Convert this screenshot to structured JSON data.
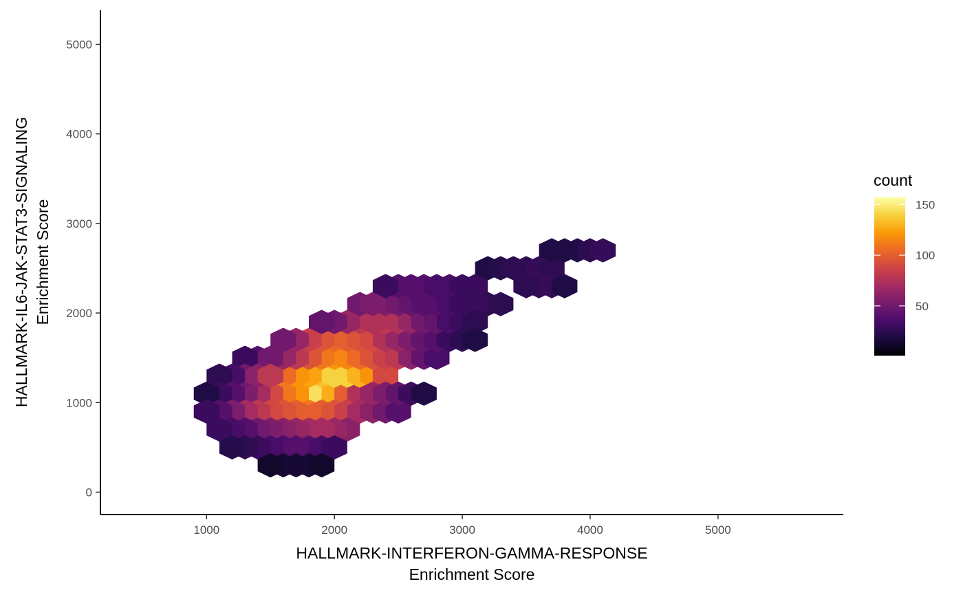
{
  "chart_data": {
    "type": "heatmap",
    "subtype": "hexbin",
    "title": "",
    "xlabel_lines": [
      "HALLMARK-INTERFERON-GAMMA-RESPONSE",
      "Enrichment Score"
    ],
    "ylabel_lines": [
      "HALLMARK-IL6-JAK-STAT3-SIGNALING",
      "Enrichment Score"
    ],
    "xlim": [
      170,
      5980
    ],
    "ylim": [
      -250,
      5380
    ],
    "x_ticks": [
      1000,
      2000,
      3000,
      4000,
      5000
    ],
    "y_ticks": [
      0,
      1000,
      2000,
      3000,
      4000,
      5000
    ],
    "x_tick_labels": [
      "1000",
      "2000",
      "3000",
      "4000",
      "5000"
    ],
    "y_tick_labels": [
      "0",
      "1000",
      "2000",
      "3000",
      "4000",
      "5000"
    ],
    "grid": false,
    "colormap": "inferno",
    "colormap_stops": [
      "#000004",
      "#1b0c41",
      "#4a0c6b",
      "#781c6d",
      "#a52c60",
      "#cf4446",
      "#ed6925",
      "#fb9b06",
      "#f7d13d",
      "#fcffa4"
    ],
    "legend": {
      "title": "count",
      "placement": "right",
      "range": [
        1,
        157
      ],
      "tick_values": [
        50,
        100,
        150
      ],
      "tick_labels": [
        "50",
        "100",
        "150"
      ]
    },
    "bin_width": 200,
    "bins": [
      {
        "x": 1800,
        "y": 1100,
        "count": 157
      },
      {
        "x": 1900,
        "y": 1100,
        "count": 145
      },
      {
        "x": 2000,
        "y": 1100,
        "count": 128
      },
      {
        "x": 1700,
        "y": 1100,
        "count": 120
      },
      {
        "x": 2100,
        "y": 1100,
        "count": 100
      },
      {
        "x": 2200,
        "y": 1100,
        "count": 75
      },
      {
        "x": 1900,
        "y": 1300,
        "count": 135
      },
      {
        "x": 2000,
        "y": 1300,
        "count": 140
      },
      {
        "x": 2100,
        "y": 1300,
        "count": 140
      },
      {
        "x": 1800,
        "y": 1300,
        "count": 125
      },
      {
        "x": 2200,
        "y": 1300,
        "count": 130
      },
      {
        "x": 1700,
        "y": 1300,
        "count": 120
      },
      {
        "x": 2300,
        "y": 1300,
        "count": 120
      },
      {
        "x": 1600,
        "y": 1300,
        "count": 105
      },
      {
        "x": 2400,
        "y": 1300,
        "count": 90
      },
      {
        "x": 2000,
        "y": 1500,
        "count": 120
      },
      {
        "x": 2100,
        "y": 1500,
        "count": 115
      },
      {
        "x": 1900,
        "y": 1500,
        "count": 110
      },
      {
        "x": 2200,
        "y": 1500,
        "count": 105
      },
      {
        "x": 1800,
        "y": 1500,
        "count": 95
      },
      {
        "x": 2300,
        "y": 1500,
        "count": 95
      },
      {
        "x": 2400,
        "y": 1500,
        "count": 85
      },
      {
        "x": 1700,
        "y": 1500,
        "count": 80
      },
      {
        "x": 2500,
        "y": 1500,
        "count": 80
      },
      {
        "x": 1600,
        "y": 1500,
        "count": 65
      },
      {
        "x": 2600,
        "y": 1500,
        "count": 60
      },
      {
        "x": 1600,
        "y": 1100,
        "count": 110
      },
      {
        "x": 1500,
        "y": 1100,
        "count": 90
      },
      {
        "x": 1400,
        "y": 1100,
        "count": 70
      },
      {
        "x": 1300,
        "y": 1100,
        "count": 55
      },
      {
        "x": 1800,
        "y": 900,
        "count": 110
      },
      {
        "x": 1900,
        "y": 900,
        "count": 100
      },
      {
        "x": 1700,
        "y": 900,
        "count": 100
      },
      {
        "x": 2000,
        "y": 900,
        "count": 95
      },
      {
        "x": 1600,
        "y": 900,
        "count": 95
      },
      {
        "x": 1500,
        "y": 900,
        "count": 90
      },
      {
        "x": 2100,
        "y": 900,
        "count": 85
      },
      {
        "x": 1400,
        "y": 900,
        "count": 80
      },
      {
        "x": 2200,
        "y": 900,
        "count": 70
      },
      {
        "x": 1300,
        "y": 900,
        "count": 70
      },
      {
        "x": 2300,
        "y": 900,
        "count": 60
      },
      {
        "x": 2000,
        "y": 1700,
        "count": 105
      },
      {
        "x": 2100,
        "y": 1700,
        "count": 100
      },
      {
        "x": 2200,
        "y": 1700,
        "count": 95
      },
      {
        "x": 1900,
        "y": 1700,
        "count": 95
      },
      {
        "x": 2300,
        "y": 1700,
        "count": 90
      },
      {
        "x": 1800,
        "y": 1700,
        "count": 85
      },
      {
        "x": 2400,
        "y": 1700,
        "count": 75
      },
      {
        "x": 1700,
        "y": 1700,
        "count": 65
      },
      {
        "x": 2500,
        "y": 1700,
        "count": 65
      },
      {
        "x": 2600,
        "y": 1700,
        "count": 55
      },
      {
        "x": 1600,
        "y": 1700,
        "count": 50
      },
      {
        "x": 2200,
        "y": 1900,
        "count": 80
      },
      {
        "x": 2400,
        "y": 1900,
        "count": 80
      },
      {
        "x": 2300,
        "y": 1900,
        "count": 75
      },
      {
        "x": 2500,
        "y": 1900,
        "count": 75
      },
      {
        "x": 2100,
        "y": 1900,
        "count": 65
      },
      {
        "x": 2600,
        "y": 1900,
        "count": 65
      },
      {
        "x": 2000,
        "y": 1900,
        "count": 50
      },
      {
        "x": 1900,
        "y": 1900,
        "count": 45
      },
      {
        "x": 1400,
        "y": 1500,
        "count": 40
      },
      {
        "x": 1500,
        "y": 1500,
        "count": 50
      },
      {
        "x": 1300,
        "y": 1500,
        "count": 30
      },
      {
        "x": 1300,
        "y": 1300,
        "count": 50
      },
      {
        "x": 1400,
        "y": 1300,
        "count": 60
      },
      {
        "x": 1500,
        "y": 1300,
        "count": 80
      },
      {
        "x": 1200,
        "y": 1300,
        "count": 35
      },
      {
        "x": 1100,
        "y": 1300,
        "count": 25
      },
      {
        "x": 1200,
        "y": 1100,
        "count": 40
      },
      {
        "x": 1100,
        "y": 1100,
        "count": 30
      },
      {
        "x": 1000,
        "y": 1100,
        "count": 20
      },
      {
        "x": 1200,
        "y": 900,
        "count": 55
      },
      {
        "x": 1100,
        "y": 900,
        "count": 40
      },
      {
        "x": 1000,
        "y": 900,
        "count": 30
      },
      {
        "x": 2400,
        "y": 900,
        "count": 50
      },
      {
        "x": 2500,
        "y": 900,
        "count": 40
      },
      {
        "x": 2300,
        "y": 1100,
        "count": 65
      },
      {
        "x": 2400,
        "y": 1100,
        "count": 55
      },
      {
        "x": 2500,
        "y": 1100,
        "count": 45
      },
      {
        "x": 2600,
        "y": 1100,
        "count": 30
      },
      {
        "x": 2700,
        "y": 1100,
        "count": 20
      },
      {
        "x": 2700,
        "y": 1500,
        "count": 45
      },
      {
        "x": 2800,
        "y": 1500,
        "count": 35
      },
      {
        "x": 2700,
        "y": 1700,
        "count": 45
      },
      {
        "x": 2800,
        "y": 1700,
        "count": 40
      },
      {
        "x": 2900,
        "y": 1700,
        "count": 30
      },
      {
        "x": 2700,
        "y": 1900,
        "count": 50
      },
      {
        "x": 2800,
        "y": 1900,
        "count": 45
      },
      {
        "x": 2900,
        "y": 1900,
        "count": 35
      },
      {
        "x": 2100,
        "y": 700,
        "count": 60
      },
      {
        "x": 2000,
        "y": 700,
        "count": 65
      },
      {
        "x": 1900,
        "y": 700,
        "count": 70
      },
      {
        "x": 1800,
        "y": 700,
        "count": 70
      },
      {
        "x": 1700,
        "y": 700,
        "count": 65
      },
      {
        "x": 1600,
        "y": 700,
        "count": 60
      },
      {
        "x": 1500,
        "y": 700,
        "count": 55
      },
      {
        "x": 1400,
        "y": 700,
        "count": 50
      },
      {
        "x": 1300,
        "y": 700,
        "count": 40
      },
      {
        "x": 1200,
        "y": 700,
        "count": 35
      },
      {
        "x": 1100,
        "y": 700,
        "count": 30
      },
      {
        "x": 1500,
        "y": 500,
        "count": 35
      },
      {
        "x": 1600,
        "y": 500,
        "count": 35
      },
      {
        "x": 1700,
        "y": 500,
        "count": 40
      },
      {
        "x": 1800,
        "y": 500,
        "count": 40
      },
      {
        "x": 1900,
        "y": 500,
        "count": 35
      },
      {
        "x": 2000,
        "y": 500,
        "count": 30
      },
      {
        "x": 1400,
        "y": 500,
        "count": 30
      },
      {
        "x": 1300,
        "y": 500,
        "count": 25
      },
      {
        "x": 1200,
        "y": 500,
        "count": 22
      },
      {
        "x": 1700,
        "y": 300,
        "count": 15
      },
      {
        "x": 1800,
        "y": 300,
        "count": 15
      },
      {
        "x": 1900,
        "y": 300,
        "count": 12
      },
      {
        "x": 1600,
        "y": 300,
        "count": 15
      },
      {
        "x": 1500,
        "y": 300,
        "count": 12
      },
      {
        "x": 2200,
        "y": 2100,
        "count": 50
      },
      {
        "x": 2300,
        "y": 2100,
        "count": 55
      },
      {
        "x": 2400,
        "y": 2100,
        "count": 55
      },
      {
        "x": 2500,
        "y": 2100,
        "count": 50
      },
      {
        "x": 2600,
        "y": 2100,
        "count": 45
      },
      {
        "x": 2700,
        "y": 2100,
        "count": 40
      },
      {
        "x": 2800,
        "y": 2100,
        "count": 40
      },
      {
        "x": 2900,
        "y": 2100,
        "count": 35
      },
      {
        "x": 2500,
        "y": 2300,
        "count": 40
      },
      {
        "x": 2600,
        "y": 2300,
        "count": 40
      },
      {
        "x": 2700,
        "y": 2300,
        "count": 40
      },
      {
        "x": 2800,
        "y": 2300,
        "count": 35
      },
      {
        "x": 2900,
        "y": 2300,
        "count": 35
      },
      {
        "x": 3000,
        "y": 2300,
        "count": 30
      },
      {
        "x": 3100,
        "y": 2300,
        "count": 30
      },
      {
        "x": 2400,
        "y": 2300,
        "count": 30
      },
      {
        "x": 3200,
        "y": 2100,
        "count": 25
      },
      {
        "x": 3300,
        "y": 2100,
        "count": 25
      },
      {
        "x": 3100,
        "y": 2100,
        "count": 30
      },
      {
        "x": 3000,
        "y": 2100,
        "count": 30
      },
      {
        "x": 3000,
        "y": 1900,
        "count": 30
      },
      {
        "x": 3100,
        "y": 1900,
        "count": 25
      },
      {
        "x": 3000,
        "y": 1700,
        "count": 25
      },
      {
        "x": 3100,
        "y": 1700,
        "count": 20
      },
      {
        "x": 3200,
        "y": 2500,
        "count": 20
      },
      {
        "x": 3300,
        "y": 2500,
        "count": 22
      },
      {
        "x": 3400,
        "y": 2500,
        "count": 25
      },
      {
        "x": 3500,
        "y": 2500,
        "count": 25
      },
      {
        "x": 3600,
        "y": 2500,
        "count": 28
      },
      {
        "x": 3700,
        "y": 2500,
        "count": 25
      },
      {
        "x": 3600,
        "y": 2300,
        "count": 28
      },
      {
        "x": 3700,
        "y": 2300,
        "count": 28
      },
      {
        "x": 3800,
        "y": 2300,
        "count": 20
      },
      {
        "x": 3500,
        "y": 2300,
        "count": 25
      },
      {
        "x": 3900,
        "y": 2700,
        "count": 22
      },
      {
        "x": 4000,
        "y": 2700,
        "count": 25
      },
      {
        "x": 4100,
        "y": 2700,
        "count": 28
      },
      {
        "x": 3800,
        "y": 2700,
        "count": 20
      },
      {
        "x": 3700,
        "y": 2700,
        "count": 20
      }
    ]
  }
}
